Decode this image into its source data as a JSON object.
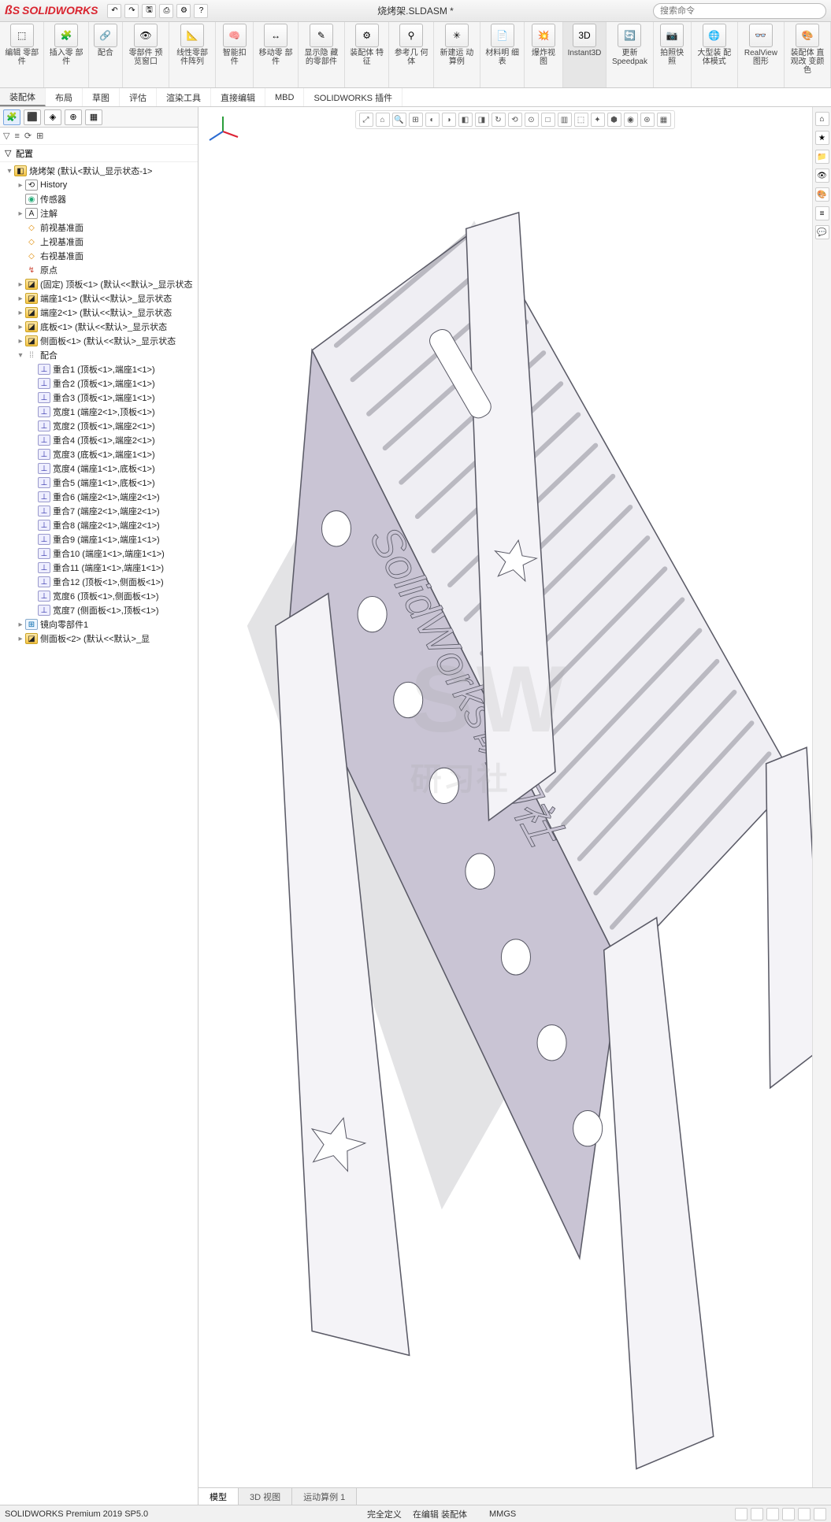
{
  "app": {
    "name": "SOLIDWORKS",
    "doc_title": "烧烤架.SLDASM *",
    "search_placeholder": "搜索命令"
  },
  "qat": [
    "↶",
    "↷",
    "🖫",
    "⎙",
    "⚙",
    "?"
  ],
  "ribbon_groups": [
    {
      "icon": "⬚",
      "label": "编辑 零部件"
    },
    {
      "icon": "🧩",
      "label": "插入零 部件"
    },
    {
      "icon": "🔗",
      "label": "配合"
    },
    {
      "icon": "👁",
      "label": "零部件 预览窗口"
    },
    {
      "icon": "📐",
      "label": "线性零部 件阵列"
    },
    {
      "icon": "🧠",
      "label": "智能扣 件"
    },
    {
      "icon": "↔",
      "label": "移动零 部件"
    },
    {
      "icon": "✎",
      "label": "显示隐 藏的零部件"
    },
    {
      "icon": "⚙",
      "label": "装配体 特征"
    },
    {
      "icon": "⚲",
      "label": "参考几 何体"
    },
    {
      "icon": "✳",
      "label": "新建运 动算例"
    },
    {
      "icon": "📄",
      "label": "材料明 细表"
    },
    {
      "icon": "💥",
      "label": "爆炸视 图"
    },
    {
      "icon": "3D",
      "label": "Instant3D",
      "highlight": true
    },
    {
      "icon": "🔄",
      "label": "更新 Speedpak"
    },
    {
      "icon": "📷",
      "label": "拍照快 照"
    },
    {
      "icon": "🌐",
      "label": "大型装 配体模式"
    },
    {
      "icon": "👓",
      "label": "RealView 图形"
    },
    {
      "icon": "🎨",
      "label": "装配体 直观改 变颜色"
    }
  ],
  "cmd_tabs": [
    "装配体",
    "布局",
    "草图",
    "评估",
    "渲染工具",
    "直接编辑",
    "MBD",
    "SOLIDWORKS 插件"
  ],
  "panel_tabs": [
    "🧩",
    "⬛",
    "◈",
    "⊕",
    "▦"
  ],
  "panel_toolbar": [
    "▽",
    "≡",
    "⟳",
    "⊞"
  ],
  "config_row": "配置",
  "tree": [
    {
      "lvl": 0,
      "exp": "▾",
      "icn": "asm",
      "label": "烧烤架 (默认<默认_显示状态-1>"
    },
    {
      "lvl": 1,
      "exp": "▸",
      "icn": "hist",
      "label": "History"
    },
    {
      "lvl": 1,
      "exp": "",
      "icn": "sensor",
      "label": "传感器"
    },
    {
      "lvl": 1,
      "exp": "▸",
      "icn": "ann",
      "label": "注解"
    },
    {
      "lvl": 1,
      "exp": "",
      "icn": "plane",
      "label": "前视基准面"
    },
    {
      "lvl": 1,
      "exp": "",
      "icn": "plane",
      "label": "上视基准面"
    },
    {
      "lvl": 1,
      "exp": "",
      "icn": "plane",
      "label": "右视基准面"
    },
    {
      "lvl": 1,
      "exp": "",
      "icn": "origin",
      "label": "原点"
    },
    {
      "lvl": 1,
      "exp": "▸",
      "icn": "part",
      "label": "(固定) 顶板<1> (默认<<默认>_显示状态"
    },
    {
      "lvl": 1,
      "exp": "▸",
      "icn": "part",
      "label": "端座1<1> (默认<<默认>_显示状态"
    },
    {
      "lvl": 1,
      "exp": "▸",
      "icn": "part",
      "label": "端座2<1> (默认<<默认>_显示状态"
    },
    {
      "lvl": 1,
      "exp": "▸",
      "icn": "part",
      "label": "底板<1> (默认<<默认>_显示状态"
    },
    {
      "lvl": 1,
      "exp": "▸",
      "icn": "part",
      "label": "侧面板<1> (默认<<默认>_显示状态"
    },
    {
      "lvl": 1,
      "exp": "▾",
      "icn": "mategrp",
      "label": "配合"
    },
    {
      "lvl": 2,
      "exp": "",
      "icn": "mate",
      "label": "重合1 (顶板<1>,端座1<1>)"
    },
    {
      "lvl": 2,
      "exp": "",
      "icn": "mate",
      "label": "重合2 (顶板<1>,端座1<1>)"
    },
    {
      "lvl": 2,
      "exp": "",
      "icn": "mate",
      "label": "重合3 (顶板<1>,端座1<1>)"
    },
    {
      "lvl": 2,
      "exp": "",
      "icn": "mate",
      "label": "宽度1 (端座2<1>,顶板<1>)"
    },
    {
      "lvl": 2,
      "exp": "",
      "icn": "mate",
      "label": "宽度2 (顶板<1>,端座2<1>)"
    },
    {
      "lvl": 2,
      "exp": "",
      "icn": "mate",
      "label": "重合4 (顶板<1>,端座2<1>)"
    },
    {
      "lvl": 2,
      "exp": "",
      "icn": "mate",
      "label": "宽度3 (底板<1>,端座1<1>)"
    },
    {
      "lvl": 2,
      "exp": "",
      "icn": "mate",
      "label": "宽度4 (端座1<1>,底板<1>)"
    },
    {
      "lvl": 2,
      "exp": "",
      "icn": "mate",
      "label": "重合5 (端座1<1>,底板<1>)"
    },
    {
      "lvl": 2,
      "exp": "",
      "icn": "mate",
      "label": "重合6 (端座2<1>,端座2<1>)"
    },
    {
      "lvl": 2,
      "exp": "",
      "icn": "mate",
      "label": "重合7 (端座2<1>,端座2<1>)"
    },
    {
      "lvl": 2,
      "exp": "",
      "icn": "mate",
      "label": "重合8 (端座2<1>,端座2<1>)"
    },
    {
      "lvl": 2,
      "exp": "",
      "icn": "mate",
      "label": "重合9 (端座1<1>,端座1<1>)"
    },
    {
      "lvl": 2,
      "exp": "",
      "icn": "mate",
      "label": "重合10 (端座1<1>,端座1<1>)"
    },
    {
      "lvl": 2,
      "exp": "",
      "icn": "mate",
      "label": "重合11 (端座1<1>,端座1<1>)"
    },
    {
      "lvl": 2,
      "exp": "",
      "icn": "mate",
      "label": "重合12 (顶板<1>,侧面板<1>)"
    },
    {
      "lvl": 2,
      "exp": "",
      "icn": "mate",
      "label": "宽度6 (顶板<1>,侧面板<1>)"
    },
    {
      "lvl": 2,
      "exp": "",
      "icn": "mate",
      "label": "宽度7 (侧面板<1>,顶板<1>)"
    },
    {
      "lvl": 1,
      "exp": "▸",
      "icn": "pattern",
      "label": "镜向零部件1"
    },
    {
      "lvl": 1,
      "exp": "▸",
      "icn": "part",
      "label": "侧面板<2> (默认<<默认>_显"
    }
  ],
  "view_toolbar": [
    "⤢",
    "⌂",
    "🔍",
    "⊞",
    "◐",
    "◑",
    "◧",
    "◨",
    "↻",
    "⟲",
    "⊙",
    "□",
    "▥",
    "⬚",
    "✦",
    "⬢",
    "◉",
    "⊛",
    "▦"
  ],
  "bottom_tabs": [
    {
      "label": "模型",
      "active": true
    },
    {
      "label": "3D 视图",
      "active": false
    },
    {
      "label": "运动算例 1",
      "active": false
    }
  ],
  "status": {
    "left": "SOLIDWORKS Premium 2019 SP5.0",
    "mid": [
      "完全定义",
      "在编辑 装配体",
      "",
      "MMGS"
    ]
  },
  "watermark": {
    "top": "SW",
    "bottom": "研习社"
  },
  "model": {
    "panel_text": "SolidWorks研习社",
    "side_fill": "#c9c4d4",
    "panel_stroke": "#5a5a66",
    "top_fill": "#efeef3",
    "leg_fill": "#f4f3f7",
    "shadow": "#d0d0d4",
    "hole_fill": "#ffffff",
    "star_fill": "#ffffff"
  },
  "colors": {
    "accent": "#d9232e",
    "border": "#cccccc",
    "panel_bg": "#f5f5f5"
  }
}
